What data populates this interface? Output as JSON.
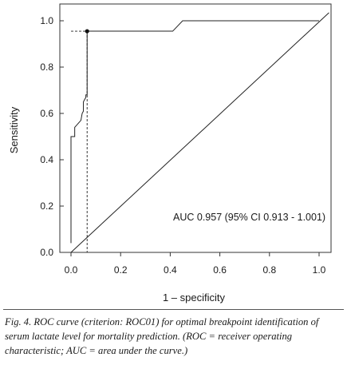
{
  "caption": "Fig. 4. ROC curve (criterion: ROC01) for optimal breakpoint identification of serum lactate level for mortality prediction. (ROC = receiver operating characteristic; AUC = area under the curve.)",
  "chart_data": {
    "type": "line",
    "title": "",
    "xlabel": "1 – specificity",
    "ylabel": "Sensitivity",
    "xlim": [
      0.0,
      1.0
    ],
    "ylim": [
      0.0,
      1.0
    ],
    "xticks": [
      0.0,
      0.2,
      0.4,
      0.6,
      0.8,
      1.0
    ],
    "yticks": [
      0.0,
      0.2,
      0.4,
      0.6,
      0.8,
      1.0
    ],
    "xtick_labels": [
      "0.0",
      "0.2",
      "0.4",
      "0.6",
      "0.8",
      "1.0"
    ],
    "ytick_labels": [
      "0.0",
      "0.2",
      "0.4",
      "0.6",
      "0.8",
      "1.0"
    ],
    "grid": false,
    "series": [
      {
        "kind": "roc-curve",
        "points": [
          [
            0.0,
            0.04
          ],
          [
            0.0,
            0.5
          ],
          [
            0.015,
            0.5
          ],
          [
            0.015,
            0.54
          ],
          [
            0.04,
            0.57
          ],
          [
            0.045,
            0.6
          ],
          [
            0.05,
            0.61
          ],
          [
            0.05,
            0.65
          ],
          [
            0.06,
            0.67
          ],
          [
            0.06,
            0.68
          ],
          [
            0.065,
            0.68
          ],
          [
            0.065,
            0.955
          ],
          [
            0.41,
            0.955
          ],
          [
            0.45,
            1.0
          ],
          [
            1.0,
            1.0
          ]
        ]
      },
      {
        "kind": "reference-diagonal",
        "points": [
          [
            0.0,
            0.0
          ],
          [
            1.04,
            1.035
          ]
        ]
      }
    ],
    "optimal_point": {
      "x": 0.065,
      "y": 0.955
    },
    "annotation": "AUC 0.957 (95% CI 0.913 - 1.001)"
  }
}
